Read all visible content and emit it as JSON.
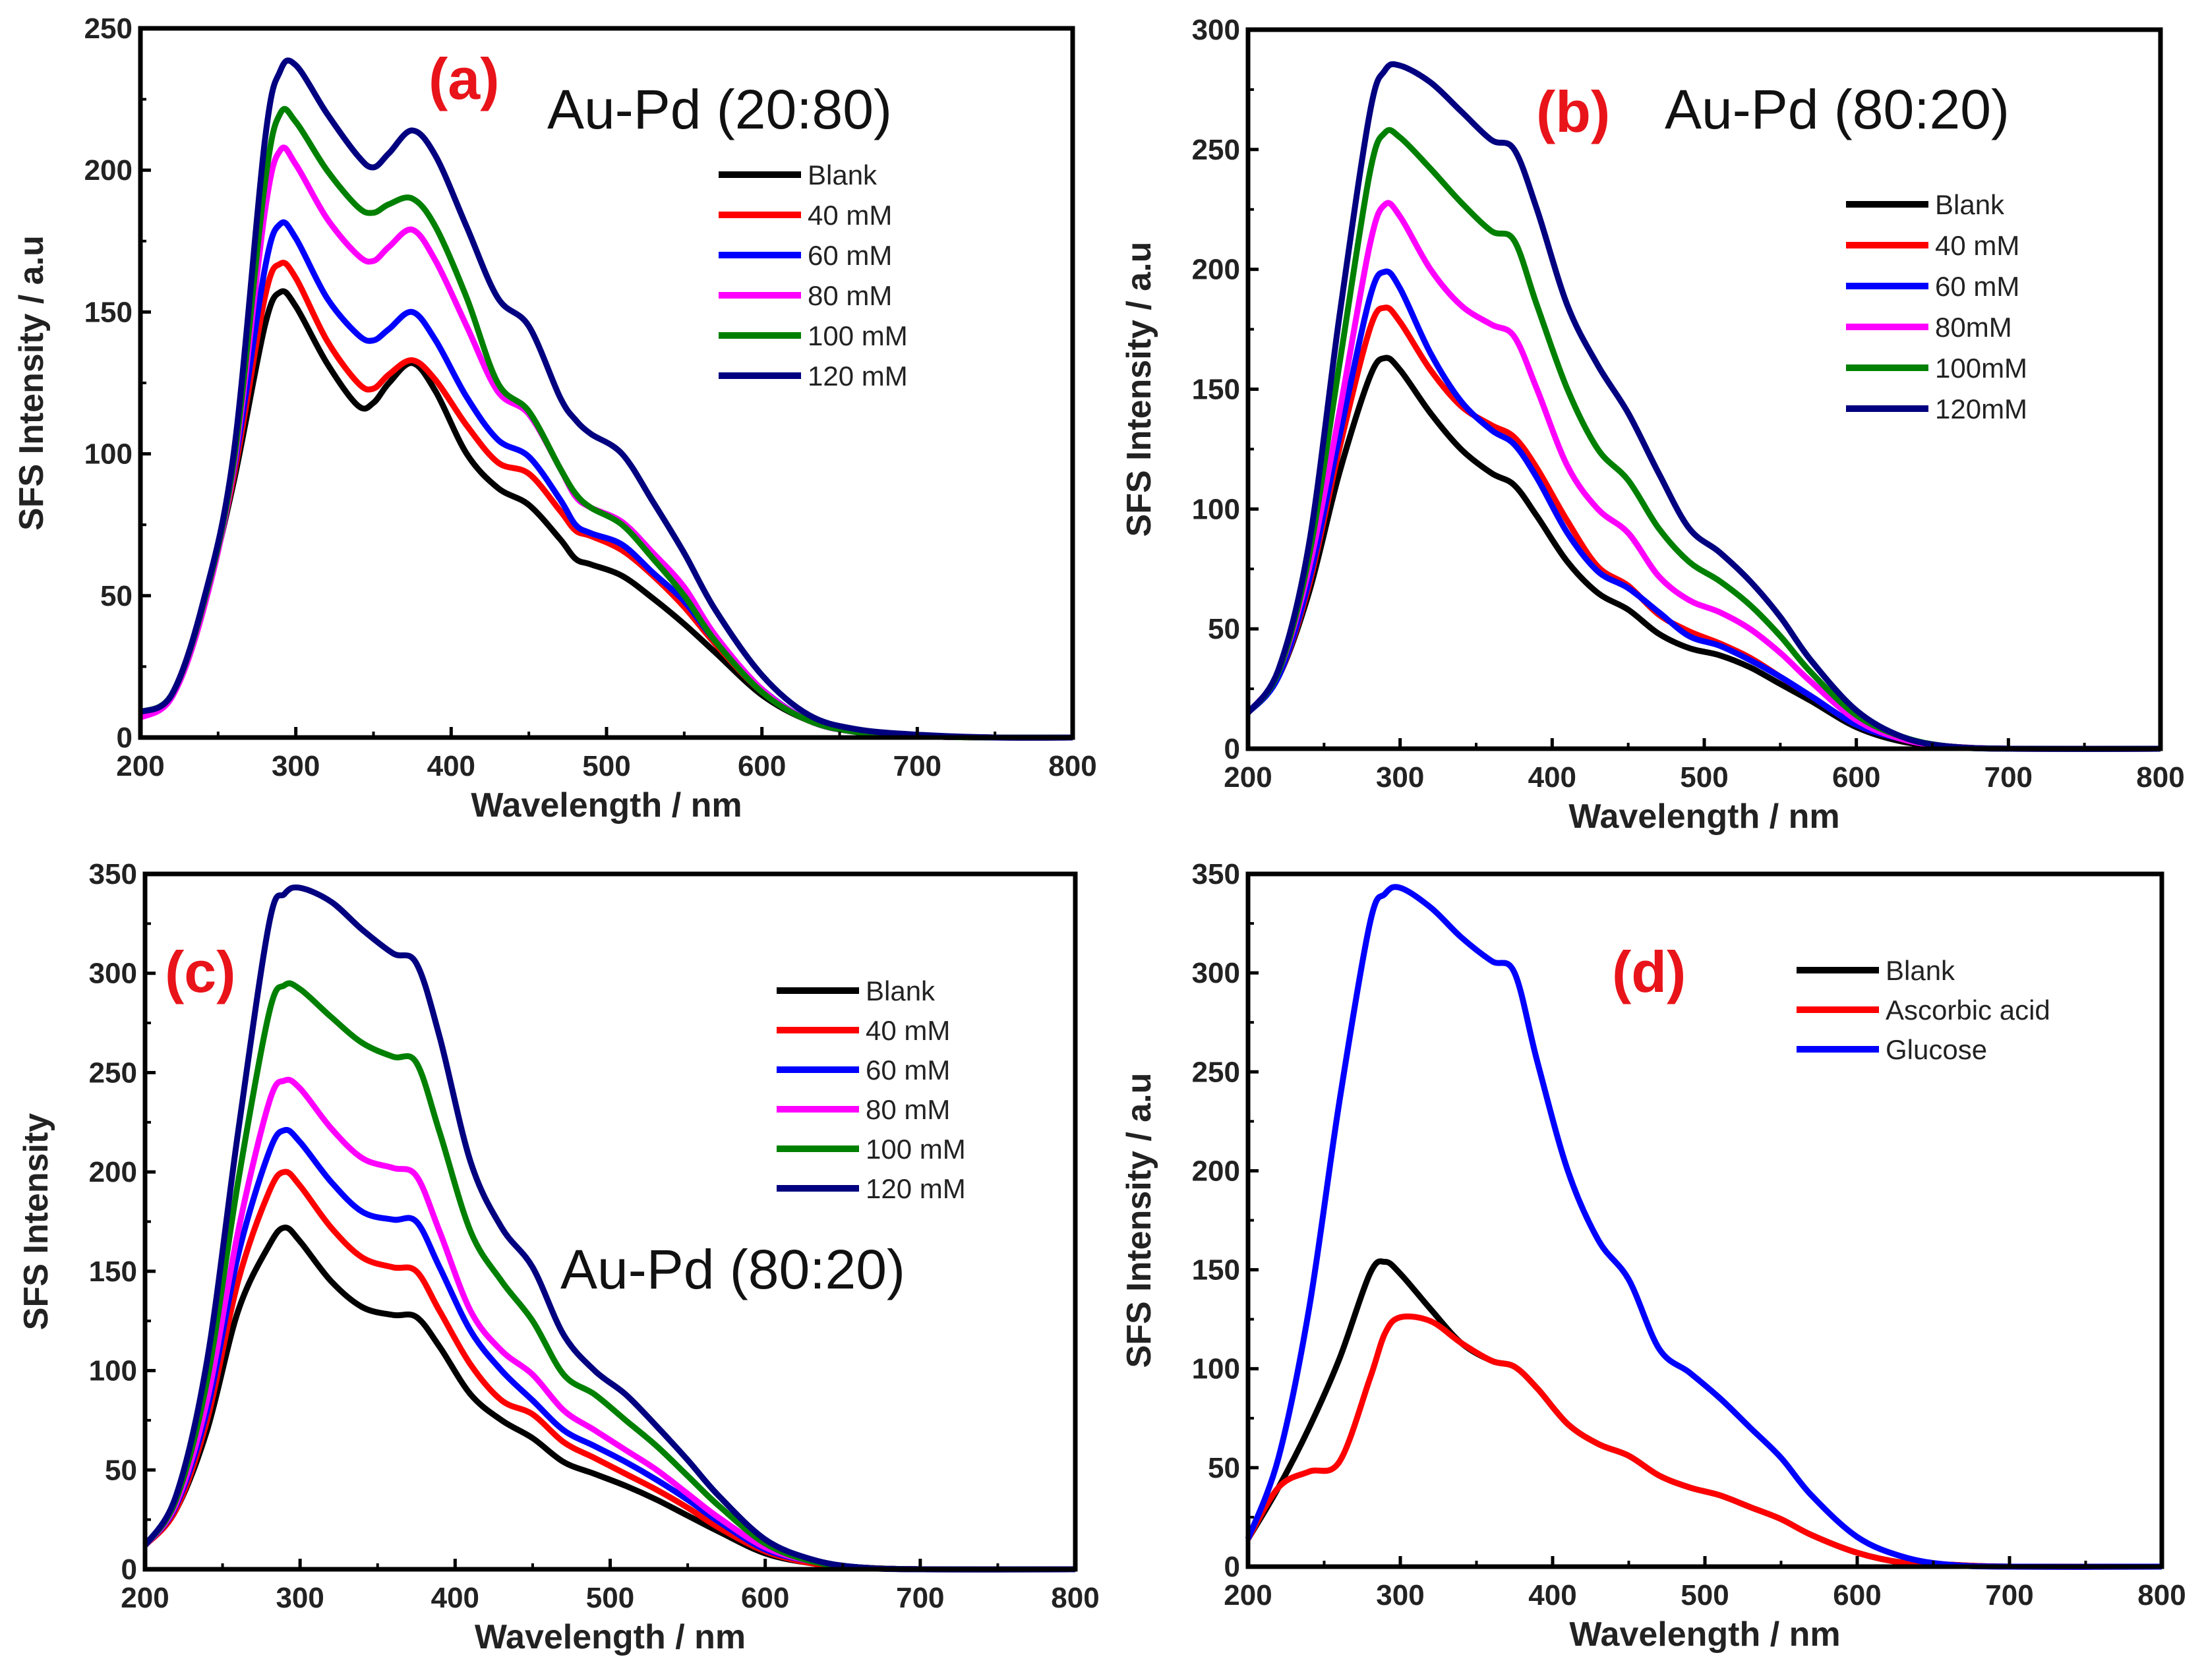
{
  "chart_data": [
    {
      "type": "line",
      "panel_label": "(a)",
      "annotation": "Au-Pd (20:80)",
      "xlabel": "Wavelength / nm",
      "ylabel": "SFS Intensity / a.u",
      "xlim": [
        200,
        800
      ],
      "ylim": [
        0,
        250
      ],
      "xticks": [
        200,
        300,
        400,
        500,
        600,
        700,
        800
      ],
      "yticks": [
        0,
        50,
        100,
        150,
        200,
        250
      ],
      "legend_position": "upper-right",
      "x": [
        200,
        220,
        240,
        260,
        280,
        290,
        300,
        320,
        340,
        350,
        360,
        375,
        390,
        410,
        430,
        450,
        470,
        480,
        490,
        510,
        530,
        550,
        570,
        600,
        630,
        660,
        700,
        750,
        800
      ],
      "series": [
        {
          "name": "Blank",
          "color": "#000000",
          "values": [
            8,
            15,
            45,
            90,
            145,
            157,
            152,
            132,
            117,
            118,
            125,
            132,
            122,
            100,
            88,
            82,
            70,
            63,
            61,
            57,
            49,
            40,
            30,
            15,
            6,
            2,
            0.5,
            0,
            0
          ]
        },
        {
          "name": "40 mM",
          "color": "#ff0000",
          "values": [
            8,
            15,
            46,
            92,
            155,
            167,
            162,
            140,
            125,
            123,
            128,
            133,
            126,
            110,
            97,
            93,
            80,
            73,
            71,
            66,
            57,
            46,
            33,
            16,
            6,
            2,
            0.5,
            0,
            0
          ]
        },
        {
          "name": "60 mM",
          "color": "#0000ff",
          "values": [
            8,
            15,
            46,
            94,
            165,
            181,
            176,
            155,
            142,
            140,
            144,
            150,
            140,
            120,
            105,
            99,
            84,
            75,
            72,
            68,
            58,
            48,
            34,
            17,
            6,
            2,
            0.5,
            0,
            0
          ]
        },
        {
          "name": "80 mM",
          "color": "#ff00ff",
          "values": [
            7,
            14,
            44,
            95,
            185,
            207,
            202,
            183,
            170,
            168,
            173,
            179,
            168,
            145,
            122,
            114,
            95,
            85,
            81,
            76,
            65,
            53,
            36,
            17,
            6,
            2,
            0.5,
            0,
            0
          ]
        },
        {
          "name": "100 mM",
          "color": "#008000",
          "values": [
            9,
            15,
            46,
            97,
            195,
            220,
            217,
            200,
            187,
            185,
            188,
            190,
            180,
            155,
            125,
            115,
            95,
            86,
            81,
            75,
            63,
            50,
            34,
            16,
            6,
            2,
            0.5,
            0,
            0
          ]
        },
        {
          "name": "120 mM",
          "color": "#000080",
          "values": [
            9,
            15,
            47,
            100,
            210,
            235,
            237,
            220,
            205,
            201,
            206,
            214,
            205,
            180,
            155,
            145,
            120,
            112,
            107,
            100,
            83,
            65,
            45,
            22,
            8,
            3,
            1,
            0,
            0
          ]
        }
      ]
    },
    {
      "type": "line",
      "panel_label": "(b)",
      "annotation": "Au-Pd (80:20)",
      "xlabel": "Wavelength / nm",
      "ylabel": "SFS Intensity / a.u",
      "xlim": [
        200,
        800
      ],
      "ylim": [
        0,
        300
      ],
      "xticks": [
        200,
        300,
        400,
        500,
        600,
        700,
        800
      ],
      "yticks": [
        0,
        50,
        100,
        150,
        200,
        250,
        300
      ],
      "legend_position": "upper-right",
      "x": [
        200,
        220,
        240,
        260,
        280,
        290,
        300,
        320,
        340,
        360,
        375,
        390,
        410,
        430,
        450,
        470,
        490,
        510,
        530,
        550,
        570,
        600,
        630,
        660,
        700,
        800
      ],
      "series": [
        {
          "name": "Blank",
          "color": "#000000",
          "values": [
            15,
            30,
            65,
            115,
            155,
            163,
            158,
            140,
            125,
            115,
            110,
            97,
            78,
            65,
            58,
            48,
            42,
            39,
            34,
            27,
            20,
            9,
            3,
            1,
            0,
            0
          ]
        },
        {
          "name": "40 mM",
          "color": "#ff0000",
          "values": [
            15,
            30,
            68,
            125,
            175,
            184,
            178,
            158,
            143,
            135,
            130,
            117,
            95,
            76,
            68,
            56,
            49,
            44,
            38,
            30,
            22,
            10,
            4,
            1,
            0,
            0
          ]
        },
        {
          "name": "60 mM",
          "color": "#0000ff",
          "values": [
            15,
            30,
            70,
            130,
            188,
            199,
            192,
            165,
            145,
            133,
            127,
            113,
            90,
            74,
            67,
            57,
            47,
            43,
            37,
            30,
            22,
            10,
            4,
            1,
            0,
            0
          ]
        },
        {
          "name": "80mM",
          "color": "#ff00ff",
          "values": [
            15,
            32,
            75,
            140,
            210,
            227,
            222,
            200,
            185,
            177,
            172,
            150,
            118,
            100,
            90,
            72,
            62,
            57,
            50,
            40,
            28,
            12,
            4,
            1,
            0,
            0
          ]
        },
        {
          "name": "100mM",
          "color": "#008000",
          "values": [
            15,
            32,
            80,
            160,
            240,
            257,
            255,
            242,
            228,
            216,
            212,
            185,
            150,
            125,
            112,
            92,
            78,
            70,
            60,
            47,
            32,
            14,
            5,
            1,
            0,
            0
          ]
        },
        {
          "name": "120mM",
          "color": "#000080",
          "values": [
            15,
            33,
            85,
            180,
            265,
            283,
            285,
            278,
            266,
            254,
            250,
            225,
            185,
            160,
            140,
            115,
            92,
            82,
            70,
            55,
            37,
            16,
            5,
            1,
            0,
            0
          ]
        }
      ]
    },
    {
      "type": "line",
      "panel_label": "(c)",
      "annotation": "Au-Pd (80:20)",
      "xlabel": "Wavelength / nm",
      "ylabel": "SFS Intensity",
      "xlim": [
        200,
        800
      ],
      "ylim": [
        0,
        350
      ],
      "xticks": [
        200,
        300,
        400,
        500,
        600,
        700,
        800
      ],
      "yticks": [
        0,
        50,
        100,
        150,
        200,
        250,
        300,
        350
      ],
      "legend_position": "upper-right",
      "x": [
        200,
        220,
        240,
        260,
        280,
        290,
        300,
        320,
        340,
        360,
        375,
        390,
        410,
        430,
        450,
        470,
        490,
        510,
        530,
        550,
        570,
        600,
        630,
        660,
        700,
        800
      ],
      "series": [
        {
          "name": "Blank",
          "color": "#000000",
          "values": [
            12,
            30,
            70,
            130,
            163,
            172,
            165,
            145,
            132,
            128,
            127,
            112,
            88,
            75,
            66,
            54,
            48,
            42,
            35,
            27,
            19,
            8,
            3,
            1,
            0,
            0
          ]
        },
        {
          "name": "40 mM",
          "color": "#ff0000",
          "values": [
            12,
            30,
            75,
            145,
            190,
            200,
            193,
            172,
            157,
            152,
            150,
            130,
            103,
            85,
            78,
            64,
            56,
            48,
            40,
            31,
            21,
            9,
            3,
            1,
            0,
            0
          ]
        },
        {
          "name": "60 mM",
          "color": "#0000ff",
          "values": [
            12,
            32,
            80,
            158,
            210,
            221,
            215,
            195,
            180,
            176,
            175,
            152,
            120,
            100,
            85,
            70,
            62,
            54,
            45,
            35,
            24,
            10,
            4,
            1,
            0,
            0
          ]
        },
        {
          "name": "80 mM",
          "color": "#ff00ff",
          "values": [
            12,
            33,
            85,
            170,
            235,
            246,
            242,
            222,
            207,
            202,
            198,
            170,
            130,
            110,
            98,
            80,
            70,
            60,
            50,
            38,
            26,
            11,
            4,
            1,
            0,
            0
          ]
        },
        {
          "name": "100 mM",
          "color": "#008000",
          "values": [
            12,
            35,
            95,
            195,
            280,
            294,
            292,
            278,
            265,
            258,
            255,
            220,
            170,
            145,
            125,
            98,
            88,
            75,
            62,
            47,
            32,
            13,
            4,
            1,
            0,
            0
          ]
        },
        {
          "name": "120 mM",
          "color": "#000080",
          "values": [
            12,
            37,
            105,
            220,
            325,
            340,
            343,
            336,
            322,
            310,
            305,
            268,
            205,
            172,
            152,
            118,
            100,
            88,
            72,
            55,
            37,
            15,
            5,
            1,
            0,
            0
          ]
        }
      ]
    },
    {
      "type": "line",
      "panel_label": "(d)",
      "annotation": "",
      "xlabel": "Wavelength / nm",
      "ylabel": "SFS Intensity / a.u",
      "xlim": [
        200,
        800
      ],
      "ylim": [
        0,
        350
      ],
      "xticks": [
        200,
        300,
        400,
        500,
        600,
        700,
        800
      ],
      "yticks": [
        0,
        50,
        100,
        150,
        200,
        250,
        300,
        350
      ],
      "legend_position": "upper-right",
      "x": [
        200,
        220,
        240,
        260,
        280,
        290,
        300,
        320,
        340,
        360,
        375,
        390,
        410,
        430,
        450,
        470,
        490,
        510,
        530,
        550,
        570,
        600,
        630,
        660,
        700,
        800
      ],
      "series": [
        {
          "name": "Blank",
          "color": "#000000",
          "values": [
            14,
            40,
            70,
            105,
            148,
            154,
            148,
            130,
            113,
            104,
            101,
            90,
            72,
            62,
            56,
            46,
            40,
            36,
            30,
            24,
            16,
            7,
            2,
            1,
            0,
            0
          ]
        },
        {
          "name": "Ascorbic acid",
          "color": "#ff0000",
          "values": [
            14,
            40,
            48,
            53,
            95,
            118,
            126,
            124,
            113,
            104,
            101,
            90,
            72,
            62,
            56,
            46,
            40,
            36,
            30,
            24,
            16,
            7,
            2,
            1,
            0,
            0
          ]
        },
        {
          "name": "Glucose",
          "color": "#0000ff",
          "values": [
            14,
            55,
            130,
            235,
            325,
            340,
            343,
            333,
            318,
            306,
            300,
            255,
            200,
            165,
            145,
            110,
            98,
            85,
            70,
            55,
            36,
            15,
            5,
            1,
            0,
            0
          ]
        }
      ]
    }
  ]
}
